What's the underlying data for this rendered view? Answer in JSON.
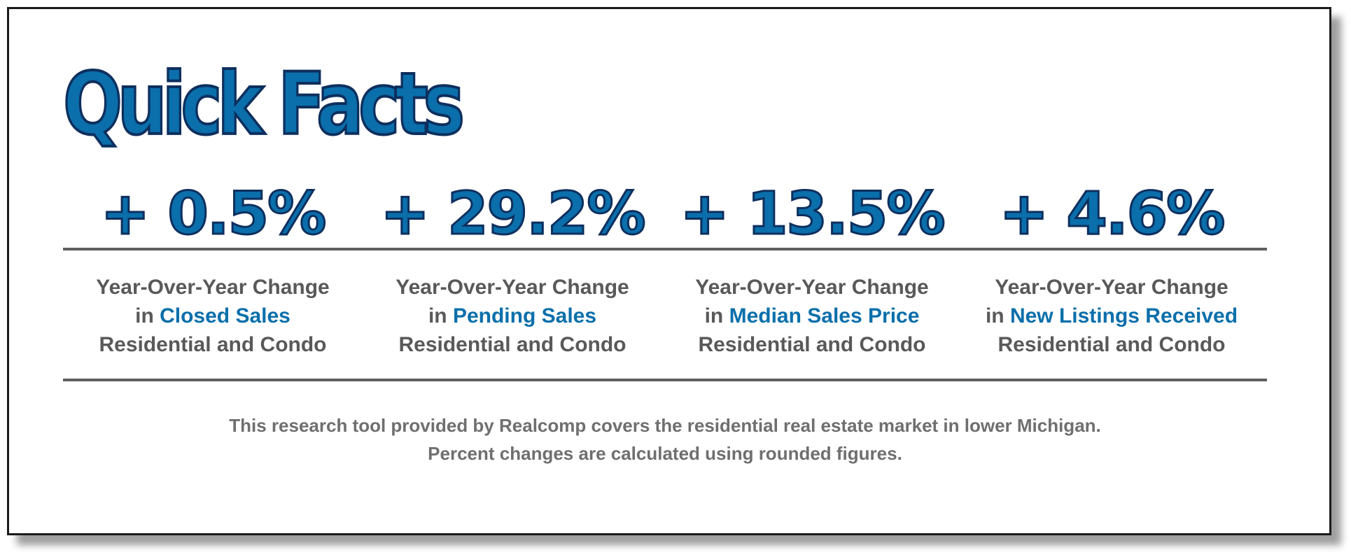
{
  "title": "Quick Facts",
  "colors": {
    "accent": "#0a6fab",
    "accent_outline": "#0d2f5e",
    "text_gray": "#595959",
    "rule": "#5f5f5f"
  },
  "stats": [
    {
      "value": "+ 0.5%",
      "line1": "Year-Over-Year Change",
      "line2_prefix": "in ",
      "line2_highlight": "Closed Sales",
      "line3": "Residential and Condo"
    },
    {
      "value": "+ 29.2%",
      "line1": "Year-Over-Year Change",
      "line2_prefix": "in ",
      "line2_highlight": "Pending Sales",
      "line3": "Residential and Condo"
    },
    {
      "value": "+ 13.5%",
      "line1": "Year-Over-Year Change",
      "line2_prefix": "in ",
      "line2_highlight": "Median Sales Price",
      "line3": "Residential and Condo"
    },
    {
      "value": "+ 4.6%",
      "line1": "Year-Over-Year Change",
      "line2_prefix": "in ",
      "line2_highlight": "New Listings Received",
      "line3": "Residential and Condo"
    }
  ],
  "footer": {
    "line1": "This research tool provided by Realcomp covers the residential real estate market in lower Michigan.",
    "line2": "Percent changes are calculated using rounded figures."
  }
}
